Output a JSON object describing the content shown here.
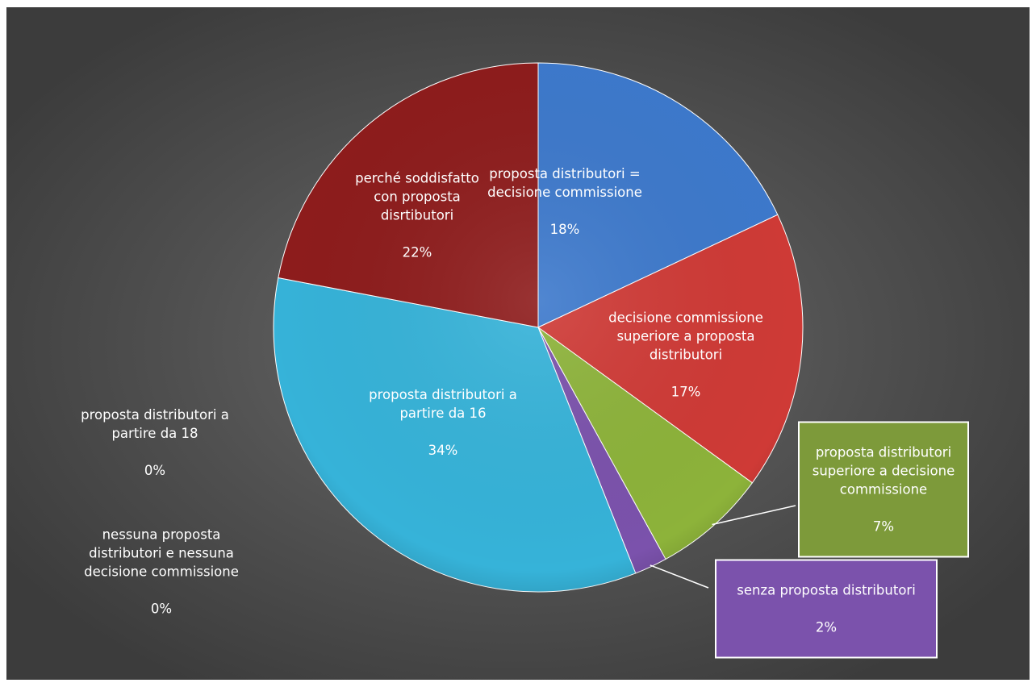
{
  "chart_data": {
    "type": "pie",
    "title": "",
    "slices": [
      {
        "label": "proposta distributori =\ndecisione commissione",
        "pct_text": "18%",
        "value": 18,
        "color": "#3d79cc"
      },
      {
        "label": "decisione commissione\nsuperiore a proposta\ndistributori",
        "pct_text": "17%",
        "value": 17,
        "color": "#cf3a36"
      },
      {
        "label": "proposta distributori\nsuperiore a decisione\ncommissione",
        "pct_text": "7%",
        "value": 7,
        "color": "#8db33a"
      },
      {
        "label": "senza proposta distributori",
        "pct_text": "2%",
        "value": 2,
        "color": "#7b52ac"
      },
      {
        "label": "proposta distributori a\npartire da 16",
        "pct_text": "34%",
        "value": 34,
        "color": "#36b3d9"
      },
      {
        "label": "proposta distributori a\npartire da 18",
        "pct_text": "0%",
        "value": 0,
        "color": "#e08a2e"
      },
      {
        "label": "nessuna proposta\ndistributori e nessuna\ndecisione commissione",
        "pct_text": "0%",
        "value": 0,
        "color": "#4d6fa8"
      },
      {
        "label": "perché soddisfatto\ncon proposta\ndisrtibutori",
        "pct_text": "22%",
        "value": 22,
        "color": "#8e1c1c"
      }
    ],
    "legend": "none",
    "data_labels": "category name and percentage"
  }
}
